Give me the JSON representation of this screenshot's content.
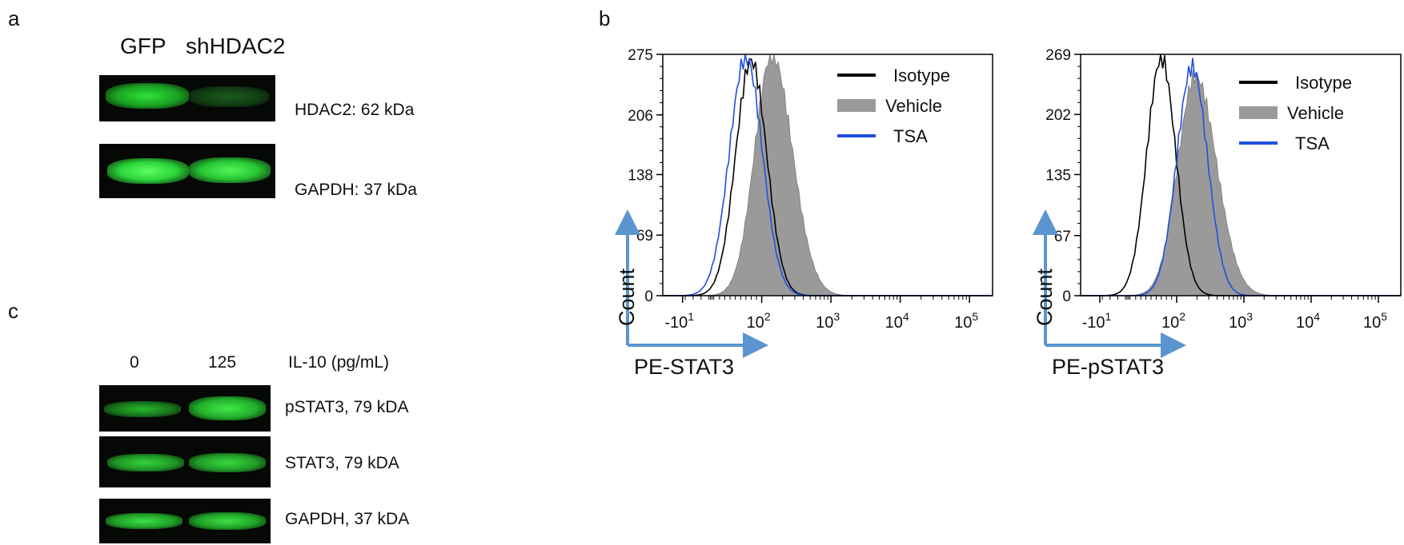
{
  "panel_a": {
    "letter": "a",
    "lane_labels": [
      "GFP",
      "shHDAC2"
    ],
    "bands": [
      {
        "label": "HDAC2: 62 kDa",
        "intensity": [
          0.85,
          0.25
        ]
      },
      {
        "label": "GAPDH: 37 kDa",
        "intensity": [
          1.0,
          0.95
        ]
      }
    ]
  },
  "panel_b": {
    "letter": "b",
    "legend": [
      {
        "name": "Isotype",
        "color": "#000000"
      },
      {
        "name": "Vehicle",
        "color": "#8a8a8a"
      },
      {
        "name": "TSA",
        "color": "#1f4fe0"
      }
    ]
  },
  "panel_c": {
    "letter": "c",
    "lane_labels": [
      "0",
      "125"
    ],
    "condition_label": "IL-10 (pg/mL)",
    "bands": [
      {
        "label": "pSTAT3, 79 kDA",
        "intensity": [
          0.5,
          0.85
        ]
      },
      {
        "label": "STAT3, 79 kDA",
        "intensity": [
          0.75,
          0.8
        ]
      },
      {
        "label": "GAPDH, 37 kDA",
        "intensity": [
          0.8,
          0.85
        ]
      }
    ]
  },
  "chart_data": [
    {
      "type": "area",
      "ylabel": "Count",
      "xlabel": "PE-STAT3",
      "xscale": "biexponential",
      "x_ticks": [
        "-10^1",
        "10^2",
        "10^3",
        "10^4",
        "10^5"
      ],
      "y_ticks": [
        0,
        69,
        138,
        206,
        275
      ],
      "ylim": [
        0,
        275
      ],
      "series": [
        {
          "name": "Isotype",
          "style": "black line",
          "peak_x": 80,
          "peak_count": 268
        },
        {
          "name": "Vehicle",
          "style": "gray filled",
          "peak_x": 140,
          "peak_count": 275
        },
        {
          "name": "TSA",
          "style": "blue line",
          "peak_x": 70,
          "peak_count": 272
        }
      ]
    },
    {
      "type": "area",
      "ylabel": "Count",
      "xlabel": "PE-pSTAT3",
      "xscale": "biexponential",
      "x_ticks": [
        "-10^1",
        "10^2",
        "10^3",
        "10^4",
        "10^5"
      ],
      "y_ticks": [
        0,
        67,
        135,
        202,
        269
      ],
      "ylim": [
        0,
        269
      ],
      "series": [
        {
          "name": "Isotype",
          "style": "black line",
          "peak_x": 70,
          "peak_count": 265
        },
        {
          "name": "Vehicle",
          "style": "gray filled",
          "peak_x": 190,
          "peak_count": 245
        },
        {
          "name": "TSA",
          "style": "blue line",
          "peak_x": 170,
          "peak_count": 255
        }
      ]
    }
  ]
}
